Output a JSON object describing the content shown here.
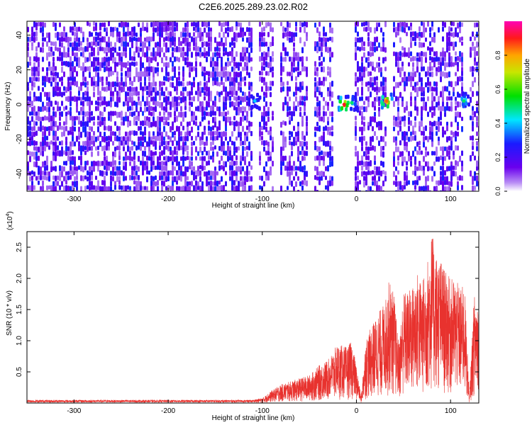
{
  "title": "C2E6.2025.289.23.02.R02",
  "colors": {
    "signal_line": "#e8322e",
    "frame": "#000000",
    "background": "#ffffff"
  },
  "chart_data": [
    {
      "type": "heatmap",
      "xlabel": "Height of straight line (km)",
      "ylabel": "Frequency (Hz)",
      "xlim": [
        -350,
        130
      ],
      "ylim": [
        -50,
        48
      ],
      "x_ticks": [
        -300,
        -200,
        -100,
        0,
        100
      ],
      "y_ticks": [
        -40,
        -20,
        0,
        20,
        40
      ],
      "grid": false,
      "colorbar": {
        "label": "Normalized spectral amplitude",
        "range": [
          0,
          1
        ],
        "ticks": [
          "0.0",
          "0.2",
          "0.4",
          "0.6",
          "0.8"
        ],
        "colormap": "rainbow (white, violet, blue, cyan, green, yellow, red, magenta)",
        "position": "right"
      },
      "empty_gaps_km": [
        [
          -112,
          -105
        ],
        [
          -90,
          -82
        ],
        [
          -52,
          -47
        ],
        [
          -26,
          -2
        ],
        [
          32,
          37
        ],
        [
          112,
          120
        ]
      ],
      "hotspots": [
        {
          "x": -108,
          "y": 2,
          "amplitude": 0.4
        },
        {
          "x": -13,
          "y": 0,
          "amplitude": 0.9
        },
        {
          "x": -5,
          "y": 1,
          "amplitude": 0.5
        },
        {
          "x": 32,
          "y": 2,
          "amplitude": 0.85
        },
        {
          "x": 114,
          "y": 2,
          "amplitude": 0.5
        }
      ]
    },
    {
      "type": "line",
      "xlabel": "Height of straight line (km)",
      "ylabel": "SNR (10 * v/v)",
      "y_multiplier_base": "(x10",
      "y_multiplier_exp": "4",
      "y_multiplier_close": ")",
      "xlim": [
        -350,
        130
      ],
      "ylim": [
        0,
        2.75
      ],
      "x_ticks": [
        -300,
        -200,
        -100,
        0,
        100
      ],
      "y_ticks": [
        "0.5",
        "1.0",
        "1.5",
        "2.0",
        "2.5"
      ],
      "grid": false,
      "series": [
        {
          "x": [
            -350,
            -300,
            -250,
            -200,
            -150,
            -120,
            -100,
            -90,
            -80,
            -70,
            -60,
            -50,
            -40,
            -30,
            -20,
            -10,
            -5,
            0,
            5,
            10,
            15,
            20,
            25,
            30,
            35,
            40,
            45,
            50,
            55,
            60,
            65,
            70,
            75,
            80,
            85,
            90,
            95,
            100,
            105,
            110,
            115,
            120,
            125,
            130
          ],
          "values": [
            0.03,
            0.03,
            0.03,
            0.03,
            0.03,
            0.03,
            0.08,
            0.2,
            0.3,
            0.35,
            0.4,
            0.45,
            0.6,
            0.7,
            0.95,
            0.9,
            1.0,
            0.6,
            0.1,
            1.05,
            1.2,
            1.35,
            1.5,
            1.6,
            2.0,
            1.75,
            0.95,
            1.8,
            1.8,
            1.9,
            2.1,
            1.95,
            2.25,
            2.75,
            2.4,
            2.3,
            2.1,
            2.0,
            2.0,
            1.85,
            1.9,
            0.1,
            1.75,
            1.7
          ]
        }
      ]
    }
  ]
}
